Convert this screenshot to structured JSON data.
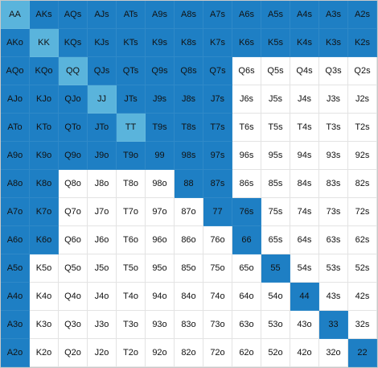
{
  "colors": {
    "pair": "#5ab4dc",
    "in_range": "#1e7fc4",
    "out_of_range": "#ffffff"
  },
  "hand_grid": {
    "rows": [
      [
        "AA",
        "AKs",
        "AQs",
        "AJs",
        "ATs",
        "A9s",
        "A8s",
        "A7s",
        "A6s",
        "A5s",
        "A4s",
        "A3s",
        "A2s"
      ],
      [
        "AKo",
        "KK",
        "KQs",
        "KJs",
        "KTs",
        "K9s",
        "K8s",
        "K7s",
        "K6s",
        "K5s",
        "K4s",
        "K3s",
        "K2s"
      ],
      [
        "AQo",
        "KQo",
        "QQ",
        "QJs",
        "QTs",
        "Q9s",
        "Q8s",
        "Q7s",
        "Q6s",
        "Q5s",
        "Q4s",
        "Q3s",
        "Q2s"
      ],
      [
        "AJo",
        "KJo",
        "QJo",
        "JJ",
        "JTs",
        "J9s",
        "J8s",
        "J7s",
        "J6s",
        "J5s",
        "J4s",
        "J3s",
        "J2s"
      ],
      [
        "ATo",
        "KTo",
        "QTo",
        "JTo",
        "TT",
        "T9s",
        "T8s",
        "T7s",
        "T6s",
        "T5s",
        "T4s",
        "T3s",
        "T2s"
      ],
      [
        "A9o",
        "K9o",
        "Q9o",
        "J9o",
        "T9o",
        "99",
        "98s",
        "97s",
        "96s",
        "95s",
        "94s",
        "93s",
        "92s"
      ],
      [
        "A8o",
        "K8o",
        "Q8o",
        "J8o",
        "T8o",
        "98o",
        "88",
        "87s",
        "86s",
        "85s",
        "84s",
        "83s",
        "82s"
      ],
      [
        "A7o",
        "K7o",
        "Q7o",
        "J7o",
        "T7o",
        "97o",
        "87o",
        "77",
        "76s",
        "75s",
        "74s",
        "73s",
        "72s"
      ],
      [
        "A6o",
        "K6o",
        "Q6o",
        "J6o",
        "T6o",
        "96o",
        "86o",
        "76o",
        "66",
        "65s",
        "64s",
        "63s",
        "62s"
      ],
      [
        "A5o",
        "K5o",
        "Q5o",
        "J5o",
        "T5o",
        "95o",
        "85o",
        "75o",
        "65o",
        "55",
        "54s",
        "53s",
        "52s"
      ],
      [
        "A4o",
        "K4o",
        "Q4o",
        "J4o",
        "T4o",
        "94o",
        "84o",
        "74o",
        "64o",
        "54o",
        "44",
        "43s",
        "42s"
      ],
      [
        "A3o",
        "K3o",
        "Q3o",
        "J3o",
        "T3o",
        "93o",
        "83o",
        "73o",
        "63o",
        "53o",
        "43o",
        "33",
        "32s"
      ],
      [
        "A2o",
        "K2o",
        "Q2o",
        "J2o",
        "T2o",
        "92o",
        "82o",
        "72o",
        "62o",
        "52o",
        "42o",
        "32o",
        "22"
      ]
    ],
    "states": [
      [
        "pair",
        "in_range",
        "in_range",
        "in_range",
        "in_range",
        "in_range",
        "in_range",
        "in_range",
        "in_range",
        "in_range",
        "in_range",
        "in_range",
        "in_range"
      ],
      [
        "in_range",
        "pair",
        "in_range",
        "in_range",
        "in_range",
        "in_range",
        "in_range",
        "in_range",
        "in_range",
        "in_range",
        "in_range",
        "in_range",
        "in_range"
      ],
      [
        "in_range",
        "in_range",
        "pair",
        "in_range",
        "in_range",
        "in_range",
        "in_range",
        "in_range",
        "out_of_range",
        "out_of_range",
        "out_of_range",
        "out_of_range",
        "out_of_range"
      ],
      [
        "in_range",
        "in_range",
        "in_range",
        "pair",
        "in_range",
        "in_range",
        "in_range",
        "in_range",
        "out_of_range",
        "out_of_range",
        "out_of_range",
        "out_of_range",
        "out_of_range"
      ],
      [
        "in_range",
        "in_range",
        "in_range",
        "in_range",
        "pair",
        "in_range",
        "in_range",
        "in_range",
        "out_of_range",
        "out_of_range",
        "out_of_range",
        "out_of_range",
        "out_of_range"
      ],
      [
        "in_range",
        "in_range",
        "in_range",
        "in_range",
        "in_range",
        "in_range",
        "in_range",
        "in_range",
        "out_of_range",
        "out_of_range",
        "out_of_range",
        "out_of_range",
        "out_of_range"
      ],
      [
        "in_range",
        "in_range",
        "out_of_range",
        "out_of_range",
        "out_of_range",
        "out_of_range",
        "in_range",
        "in_range",
        "out_of_range",
        "out_of_range",
        "out_of_range",
        "out_of_range",
        "out_of_range"
      ],
      [
        "in_range",
        "in_range",
        "out_of_range",
        "out_of_range",
        "out_of_range",
        "out_of_range",
        "out_of_range",
        "in_range",
        "in_range",
        "out_of_range",
        "out_of_range",
        "out_of_range",
        "out_of_range"
      ],
      [
        "in_range",
        "in_range",
        "out_of_range",
        "out_of_range",
        "out_of_range",
        "out_of_range",
        "out_of_range",
        "out_of_range",
        "in_range",
        "out_of_range",
        "out_of_range",
        "out_of_range",
        "out_of_range"
      ],
      [
        "in_range",
        "out_of_range",
        "out_of_range",
        "out_of_range",
        "out_of_range",
        "out_of_range",
        "out_of_range",
        "out_of_range",
        "out_of_range",
        "in_range",
        "out_of_range",
        "out_of_range",
        "out_of_range"
      ],
      [
        "in_range",
        "out_of_range",
        "out_of_range",
        "out_of_range",
        "out_of_range",
        "out_of_range",
        "out_of_range",
        "out_of_range",
        "out_of_range",
        "out_of_range",
        "in_range",
        "out_of_range",
        "out_of_range"
      ],
      [
        "in_range",
        "out_of_range",
        "out_of_range",
        "out_of_range",
        "out_of_range",
        "out_of_range",
        "out_of_range",
        "out_of_range",
        "out_of_range",
        "out_of_range",
        "out_of_range",
        "in_range",
        "out_of_range"
      ],
      [
        "in_range",
        "out_of_range",
        "out_of_range",
        "out_of_range",
        "out_of_range",
        "out_of_range",
        "out_of_range",
        "out_of_range",
        "out_of_range",
        "out_of_range",
        "out_of_range",
        "out_of_range",
        "in_range"
      ]
    ]
  }
}
